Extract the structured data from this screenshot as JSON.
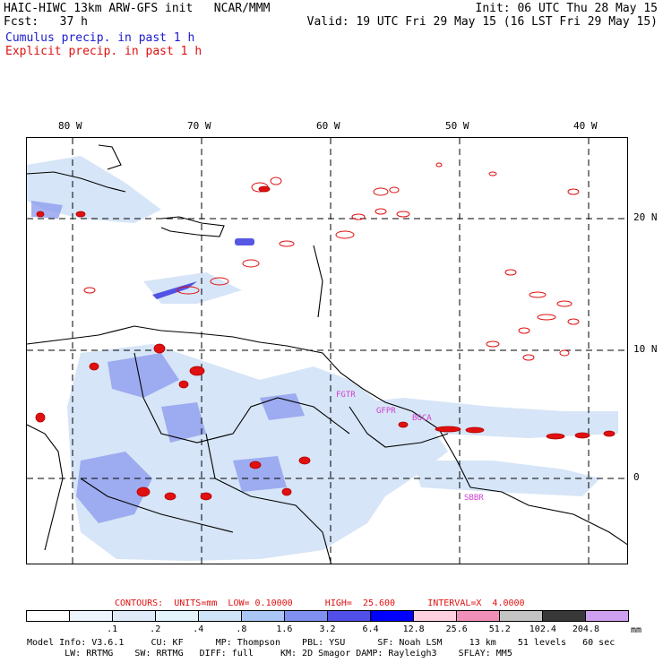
{
  "header": {
    "title_left": "HAIC-HIWC 13km ARW-GFS init   NCAR/MMM",
    "fcst_label": "Fcst:   37 h",
    "init": "Init: 06 UTC Thu 28 May 15",
    "valid": "Valid: 19 UTC Fri 29 May 15 (16 LST Fri 29 May 15)",
    "cumulus": "Cumulus precip. in past 1 h",
    "explicit": "Explicit precip. in past 1 h"
  },
  "map": {
    "lon_labels": [
      "80 W",
      "70 W",
      "60 W",
      "50 W",
      "40 W"
    ],
    "lat_labels": [
      "20 N",
      "10 N",
      "0"
    ],
    "station_labels": [
      "FGTR",
      "GFPR",
      "BGCA",
      "SBBR"
    ]
  },
  "legend": {
    "contours": "CONTOURS:  UNITS=mm  LOW= 0.10000      HIGH=  25.600      INTERVAL=X  4.0000",
    "ticks": [
      ".1",
      ".2",
      ".4",
      ".8",
      "1.6",
      "3.2",
      "6.4",
      "12.8",
      "25.6",
      "51.2",
      "102.4",
      "204.8"
    ],
    "unit": "mm",
    "colors": [
      "#ffffff",
      "#eef4fb",
      "#dfeaf8",
      "#e3f4fb",
      "#cfe4f7",
      "#aac6f5",
      "#8090f0",
      "#5050e8",
      "#0000ff",
      "#ffd0e0",
      "#f090b8",
      "#c4c4c4",
      "#383838",
      "#d0a0f0"
    ]
  },
  "model_info": {
    "line1": "Model Info: V3.6.1     CU: KF      MP: Thompson    PBL: YSU      SF: Noah LSM     13 km    51 levels   60 sec",
    "line2": "       LW: RRTMG    SW: RRTMG   DIFF: full     KM: 2D Smagor DAMP: Rayleigh3    SFLAY: MM5"
  }
}
